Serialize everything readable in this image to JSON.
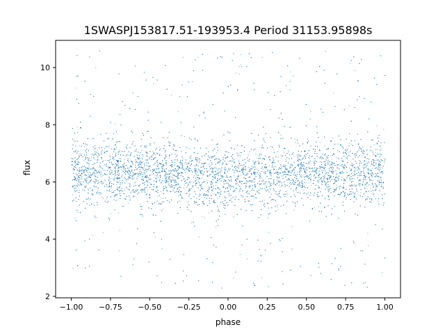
{
  "chart_data": {
    "type": "scatter",
    "title": "1SWASPJ153817.51-193953.4 Period 31153.95898s",
    "xlabel": "phase",
    "ylabel": "flux",
    "xlim": [
      -1.1,
      1.1
    ],
    "ylim": [
      1.95,
      10.95
    ],
    "x_ticks": [
      -1.0,
      -0.75,
      -0.5,
      -0.25,
      0.0,
      0.25,
      0.5,
      0.75,
      1.0
    ],
    "x_tick_labels": [
      "−1.00",
      "−0.75",
      "−0.50",
      "−0.25",
      "0.00",
      "0.25",
      "0.50",
      "0.75",
      "1.00"
    ],
    "y_ticks": [
      2,
      4,
      6,
      8,
      10
    ],
    "y_tick_labels": [
      "2",
      "4",
      "6",
      "8",
      "10"
    ],
    "grid": false,
    "legend": "none",
    "marker_color": "#1f77b4",
    "series": [
      {
        "phase_range": [
          -1.0,
          1.0
        ],
        "flux_range": [
          2.3,
          10.6
        ],
        "median_flux": [
          {
            "phase": -1.0,
            "flux": 6.35
          },
          {
            "phase": -0.75,
            "flux": 6.35
          },
          {
            "phase": -0.5,
            "flux": 6.35
          },
          {
            "phase": -0.25,
            "flux": 6.25
          },
          {
            "phase": 0.0,
            "flux": 6.15
          },
          {
            "phase": 0.25,
            "flux": 6.25
          },
          {
            "phase": 0.5,
            "flux": 6.35
          },
          {
            "phase": 0.75,
            "flux": 6.35
          },
          {
            "phase": 1.0,
            "flux": 6.35
          }
        ],
        "core_spread": 0.55
      }
    ]
  }
}
